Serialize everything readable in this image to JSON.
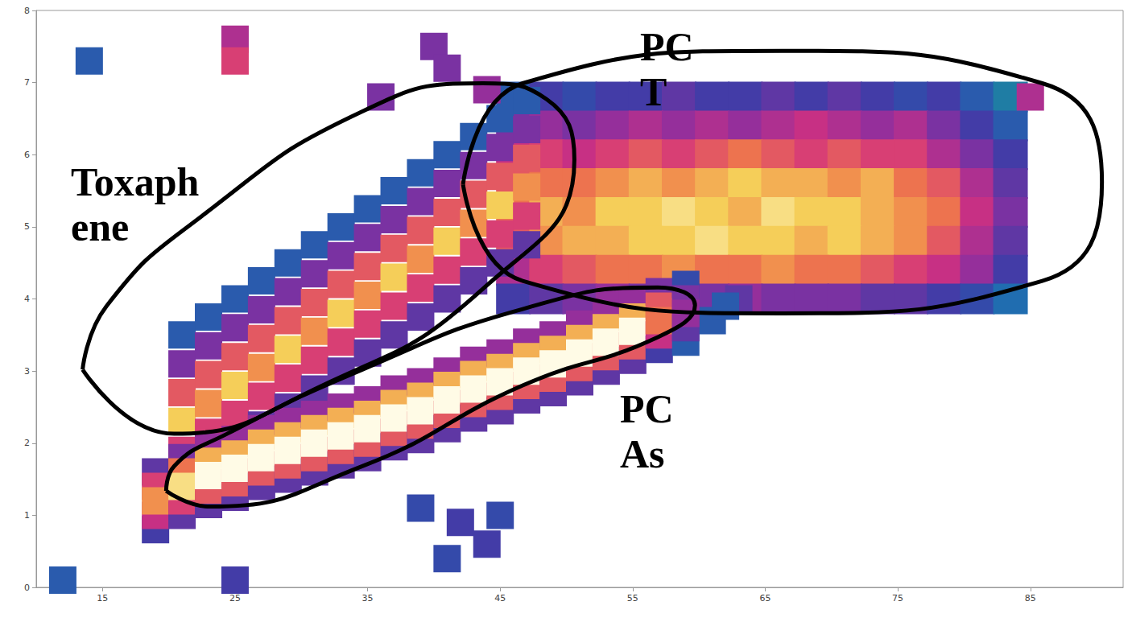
{
  "chart_data": {
    "type": "scatter",
    "xlim": [
      10,
      92
    ],
    "xticks": [
      15,
      25,
      35,
      45,
      55,
      65,
      75,
      85
    ],
    "ylim": [
      0,
      8
    ],
    "yticks": [
      0,
      1,
      2,
      3,
      4,
      5,
      6,
      7,
      8
    ],
    "grid": false,
    "intensity_range": [
      0,
      1
    ],
    "points": [
      [
        25,
        7.6,
        0.5
      ],
      [
        25,
        7.3,
        0.6
      ],
      [
        40,
        7.5,
        0.4
      ],
      [
        41,
        7.2,
        0.4
      ],
      [
        44,
        6.9,
        0.45
      ],
      [
        36,
        6.8,
        0.4
      ],
      [
        42,
        0.9,
        0.3
      ],
      [
        44,
        0.6,
        0.3
      ],
      [
        41,
        0.4,
        0.25
      ],
      [
        45,
        1.0,
        0.25
      ],
      [
        39,
        1.1,
        0.25
      ],
      [
        25,
        0.1,
        0.3
      ],
      [
        12,
        0.1,
        0.2
      ],
      [
        14,
        7.3,
        0.2
      ],
      [
        85,
        6.8,
        0.5
      ],
      [
        60,
        3.8,
        0.4
      ],
      [
        63,
        4.0,
        0.35
      ],
      [
        21,
        1.5,
        0.35
      ],
      [
        21,
        3.5,
        0.2
      ],
      [
        21,
        3.1,
        0.4
      ],
      [
        21,
        1.9,
        0.6
      ],
      [
        21,
        2.7,
        0.65
      ],
      [
        21,
        2.3,
        0.85
      ],
      [
        23,
        1.75,
        0.35
      ],
      [
        23,
        3.75,
        0.2
      ],
      [
        23,
        3.35,
        0.4
      ],
      [
        23,
        2.15,
        0.6
      ],
      [
        23,
        2.95,
        0.65
      ],
      [
        23,
        2.55,
        0.75
      ],
      [
        25,
        2.0,
        0.35
      ],
      [
        25,
        4.0,
        0.2
      ],
      [
        25,
        3.6,
        0.4
      ],
      [
        25,
        2.4,
        0.6
      ],
      [
        25,
        3.2,
        0.65
      ],
      [
        25,
        2.8,
        0.85
      ],
      [
        27,
        2.25,
        0.35
      ],
      [
        27,
        4.25,
        0.2
      ],
      [
        27,
        3.85,
        0.4
      ],
      [
        27,
        2.65,
        0.6
      ],
      [
        27,
        3.45,
        0.65
      ],
      [
        27,
        3.05,
        0.75
      ],
      [
        29,
        2.5,
        0.35
      ],
      [
        29,
        4.5,
        0.2
      ],
      [
        29,
        4.1,
        0.4
      ],
      [
        29,
        2.9,
        0.6
      ],
      [
        29,
        3.7,
        0.65
      ],
      [
        29,
        3.3,
        0.85
      ],
      [
        31,
        2.75,
        0.35
      ],
      [
        31,
        4.75,
        0.2
      ],
      [
        31,
        4.35,
        0.4
      ],
      [
        31,
        3.15,
        0.6
      ],
      [
        31,
        3.95,
        0.65
      ],
      [
        31,
        3.55,
        0.75
      ],
      [
        33,
        3.0,
        0.35
      ],
      [
        33,
        5.0,
        0.2
      ],
      [
        33,
        4.6,
        0.4
      ],
      [
        33,
        3.4,
        0.6
      ],
      [
        33,
        4.2,
        0.65
      ],
      [
        33,
        3.8,
        0.85
      ],
      [
        35,
        3.25,
        0.35
      ],
      [
        35,
        5.25,
        0.2
      ],
      [
        35,
        4.85,
        0.4
      ],
      [
        35,
        3.65,
        0.6
      ],
      [
        35,
        4.45,
        0.65
      ],
      [
        35,
        4.05,
        0.75
      ],
      [
        37,
        3.5,
        0.35
      ],
      [
        37,
        5.5,
        0.2
      ],
      [
        37,
        5.1,
        0.4
      ],
      [
        37,
        3.9,
        0.6
      ],
      [
        37,
        4.7,
        0.65
      ],
      [
        37,
        4.3,
        0.85
      ],
      [
        39,
        3.75,
        0.35
      ],
      [
        39,
        5.75,
        0.2
      ],
      [
        39,
        5.35,
        0.4
      ],
      [
        39,
        4.15,
        0.6
      ],
      [
        39,
        4.95,
        0.65
      ],
      [
        39,
        4.55,
        0.75
      ],
      [
        41,
        4.0,
        0.35
      ],
      [
        41,
        6.0,
        0.2
      ],
      [
        41,
        5.6,
        0.4
      ],
      [
        41,
        4.4,
        0.6
      ],
      [
        41,
        5.2,
        0.65
      ],
      [
        41,
        4.8,
        0.85
      ],
      [
        43,
        4.25,
        0.35
      ],
      [
        43,
        6.25,
        0.2
      ],
      [
        43,
        5.85,
        0.4
      ],
      [
        43,
        4.65,
        0.6
      ],
      [
        43,
        5.45,
        0.65
      ],
      [
        43,
        5.05,
        0.75
      ],
      [
        45,
        4.5,
        0.35
      ],
      [
        45,
        6.5,
        0.2
      ],
      [
        45,
        6.1,
        0.4
      ],
      [
        45,
        4.9,
        0.6
      ],
      [
        45,
        5.7,
        0.65
      ],
      [
        45,
        5.3,
        0.85
      ],
      [
        47,
        4.75,
        0.35
      ],
      [
        47,
        6.75,
        0.2
      ],
      [
        47,
        6.35,
        0.4
      ],
      [
        47,
        5.15,
        0.6
      ],
      [
        47,
        5.95,
        0.65
      ],
      [
        47,
        5.55,
        0.75
      ],
      [
        61,
        3.7,
        0.2
      ],
      [
        62,
        3.9,
        0.2
      ],
      [
        19,
        0.8,
        0.3
      ],
      [
        19,
        1.6,
        0.35
      ],
      [
        19,
        1.0,
        0.55
      ],
      [
        19,
        1.4,
        0.6
      ],
      [
        19,
        1.2,
        0.75
      ],
      [
        21,
        1.0,
        0.35
      ],
      [
        21,
        1.8,
        0.4
      ],
      [
        21,
        1.2,
        0.6
      ],
      [
        21,
        1.6,
        0.7
      ],
      [
        21,
        1.4,
        0.9
      ],
      [
        23,
        1.15,
        0.35
      ],
      [
        23,
        1.95,
        0.45
      ],
      [
        23,
        1.35,
        0.65
      ],
      [
        23,
        1.75,
        0.8
      ],
      [
        23,
        1.55,
        1.0
      ],
      [
        25,
        1.25,
        0.35
      ],
      [
        25,
        2.05,
        0.45
      ],
      [
        25,
        1.45,
        0.65
      ],
      [
        25,
        1.85,
        0.8
      ],
      [
        25,
        1.65,
        1.0
      ],
      [
        27,
        1.4,
        0.35
      ],
      [
        27,
        2.2,
        0.45
      ],
      [
        27,
        1.6,
        0.65
      ],
      [
        27,
        2.0,
        0.8
      ],
      [
        27,
        1.8,
        1.0
      ],
      [
        29,
        1.5,
        0.35
      ],
      [
        29,
        2.3,
        0.45
      ],
      [
        29,
        1.7,
        0.65
      ],
      [
        29,
        2.1,
        0.8
      ],
      [
        29,
        1.9,
        1.0
      ],
      [
        31,
        1.6,
        0.35
      ],
      [
        31,
        2.4,
        0.45
      ],
      [
        31,
        1.8,
        0.65
      ],
      [
        31,
        2.2,
        0.8
      ],
      [
        31,
        2.0,
        1.0
      ],
      [
        33,
        1.7,
        0.35
      ],
      [
        33,
        2.5,
        0.45
      ],
      [
        33,
        1.9,
        0.65
      ],
      [
        33,
        2.3,
        0.8
      ],
      [
        33,
        2.1,
        1.0
      ],
      [
        35,
        1.8,
        0.35
      ],
      [
        35,
        2.6,
        0.45
      ],
      [
        35,
        2.0,
        0.65
      ],
      [
        35,
        2.4,
        0.8
      ],
      [
        35,
        2.2,
        1.0
      ],
      [
        37,
        1.95,
        0.35
      ],
      [
        37,
        2.75,
        0.45
      ],
      [
        37,
        2.15,
        0.65
      ],
      [
        37,
        2.55,
        0.8
      ],
      [
        37,
        2.35,
        1.0
      ],
      [
        39,
        2.05,
        0.35
      ],
      [
        39,
        2.85,
        0.45
      ],
      [
        39,
        2.25,
        0.65
      ],
      [
        39,
        2.65,
        0.8
      ],
      [
        39,
        2.45,
        1.0
      ],
      [
        41,
        2.2,
        0.35
      ],
      [
        41,
        3.0,
        0.45
      ],
      [
        41,
        2.4,
        0.65
      ],
      [
        41,
        2.8,
        0.8
      ],
      [
        41,
        2.6,
        1.0
      ],
      [
        43,
        2.35,
        0.35
      ],
      [
        43,
        3.15,
        0.45
      ],
      [
        43,
        2.55,
        0.65
      ],
      [
        43,
        2.95,
        0.8
      ],
      [
        43,
        2.75,
        1.0
      ],
      [
        45,
        2.45,
        0.35
      ],
      [
        45,
        3.25,
        0.45
      ],
      [
        45,
        2.65,
        0.65
      ],
      [
        45,
        3.05,
        0.8
      ],
      [
        45,
        2.85,
        1.0
      ],
      [
        47,
        2.6,
        0.35
      ],
      [
        47,
        3.4,
        0.45
      ],
      [
        47,
        2.8,
        0.65
      ],
      [
        47,
        3.2,
        0.8
      ],
      [
        47,
        3.0,
        1.0
      ],
      [
        49,
        2.7,
        0.35
      ],
      [
        49,
        3.5,
        0.45
      ],
      [
        49,
        2.9,
        0.65
      ],
      [
        49,
        3.3,
        0.8
      ],
      [
        49,
        3.1,
        1.0
      ],
      [
        51,
        2.85,
        0.35
      ],
      [
        51,
        3.65,
        0.45
      ],
      [
        51,
        3.05,
        0.65
      ],
      [
        51,
        3.45,
        0.8
      ],
      [
        51,
        3.25,
        1.0
      ],
      [
        53,
        3.0,
        0.35
      ],
      [
        53,
        3.8,
        0.45
      ],
      [
        53,
        3.2,
        0.65
      ],
      [
        53,
        3.6,
        0.8
      ],
      [
        53,
        3.4,
        1.0
      ],
      [
        55,
        3.15,
        0.35
      ],
      [
        55,
        3.95,
        0.45
      ],
      [
        55,
        3.35,
        0.65
      ],
      [
        55,
        3.75,
        0.8
      ],
      [
        55,
        3.55,
        1.0
      ],
      [
        57,
        3.3,
        0.3
      ],
      [
        57,
        4.1,
        0.4
      ],
      [
        57,
        3.5,
        0.55
      ],
      [
        57,
        3.9,
        0.65
      ],
      [
        57,
        3.7,
        0.7
      ],
      [
        59,
        3.4,
        0.2
      ],
      [
        59,
        4.2,
        0.25
      ],
      [
        59,
        3.6,
        0.35
      ],
      [
        59,
        4.0,
        0.4
      ],
      [
        59,
        3.8,
        0.45
      ]
    ],
    "cells": {
      "x": [
        46,
        48.5,
        51,
        53.5,
        56,
        58.5,
        61,
        63.5,
        66,
        68.5,
        71,
        73.5,
        76,
        78.5,
        81,
        83.5
      ],
      "y": [
        6.8,
        6.4,
        6.0,
        5.6,
        5.2,
        4.8,
        4.4,
        4.0
      ],
      "values": [
        [
          0.2,
          0.3,
          0.25,
          0.3,
          0.3,
          0.35,
          0.3,
          0.3,
          0.35,
          0.3,
          0.35,
          0.3,
          0.25,
          0.3,
          0.2,
          0.1
        ],
        [
          0.4,
          0.45,
          0.4,
          0.45,
          0.5,
          0.45,
          0.5,
          0.45,
          0.5,
          0.55,
          0.5,
          0.45,
          0.5,
          0.4,
          0.3,
          0.2
        ],
        [
          0.55,
          0.6,
          0.55,
          0.6,
          0.65,
          0.6,
          0.65,
          0.7,
          0.65,
          0.6,
          0.65,
          0.6,
          0.6,
          0.5,
          0.4,
          0.3
        ],
        [
          0.65,
          0.7,
          0.7,
          0.75,
          0.8,
          0.75,
          0.8,
          0.85,
          0.8,
          0.8,
          0.75,
          0.8,
          0.7,
          0.65,
          0.5,
          0.35
        ],
        [
          0.7,
          0.8,
          0.75,
          0.85,
          0.85,
          0.9,
          0.85,
          0.8,
          0.9,
          0.85,
          0.85,
          0.8,
          0.75,
          0.7,
          0.55,
          0.4
        ],
        [
          0.65,
          0.75,
          0.8,
          0.8,
          0.85,
          0.85,
          0.9,
          0.85,
          0.85,
          0.8,
          0.85,
          0.8,
          0.75,
          0.65,
          0.5,
          0.35
        ],
        [
          0.5,
          0.6,
          0.65,
          0.7,
          0.7,
          0.75,
          0.7,
          0.7,
          0.75,
          0.7,
          0.7,
          0.65,
          0.6,
          0.55,
          0.45,
          0.3
        ],
        [
          0.3,
          0.35,
          0.4,
          0.45,
          0.4,
          0.45,
          0.4,
          0.45,
          0.4,
          0.4,
          0.4,
          0.35,
          0.35,
          0.3,
          0.25,
          0.15
        ]
      ]
    },
    "regions": [
      {
        "label": [
          "Toxaph",
          "ene"
        ],
        "outline": [
          [
            13.5,
            3.02
          ],
          [
            15.3,
            3.9
          ],
          [
            22.5,
            5.15
          ],
          [
            34.6,
            6.6
          ],
          [
            43.7,
            6.99
          ],
          [
            48.5,
            6.77
          ],
          [
            50.6,
            5.93
          ],
          [
            43.7,
            4.14
          ],
          [
            31.6,
            2.8
          ],
          [
            20.4,
            2.13
          ]
        ]
      },
      {
        "label": [
          "PC",
          "T"
        ],
        "outline": [
          [
            42.2,
            5.59
          ],
          [
            46.7,
            6.99
          ],
          [
            66.3,
            7.44
          ],
          [
            85.9,
            6.99
          ],
          [
            90.4,
            5.62
          ],
          [
            85.9,
            4.25
          ],
          [
            66.3,
            3.8
          ],
          [
            46.7,
            4.25
          ]
        ]
      },
      {
        "label": [
          "PC",
          "As"
        ],
        "outline": [
          [
            19.8,
            1.34
          ],
          [
            20.4,
            1.68
          ],
          [
            24.4,
            2.13
          ],
          [
            34.6,
            3.02
          ],
          [
            46.7,
            3.86
          ],
          [
            56.9,
            4.16
          ],
          [
            59.7,
            3.91
          ],
          [
            56.9,
            3.47
          ],
          [
            46.7,
            2.8
          ],
          [
            34.6,
            1.68
          ],
          [
            23.1,
            1.12
          ]
        ]
      }
    ]
  }
}
